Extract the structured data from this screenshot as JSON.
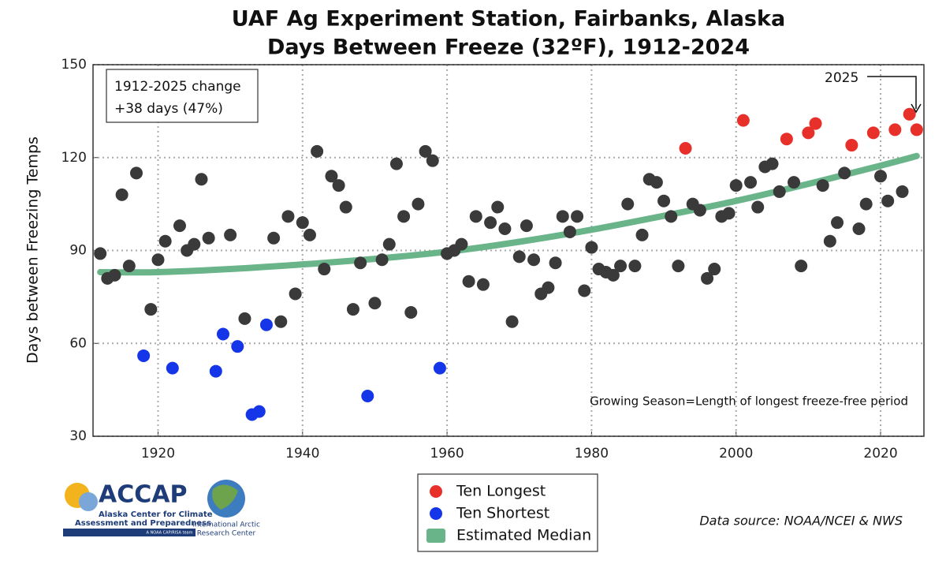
{
  "chart_data": {
    "type": "scatter",
    "title": [
      "UAF Ag Experiment Station, Fairbanks, Alaska",
      "Days Between Freeze (32ºF), 1912-2024"
    ],
    "y_label": "Days between Freezing Temps",
    "xlim": [
      1911,
      2026
    ],
    "xticks": [
      1920,
      1940,
      1960,
      1980,
      2000,
      2020
    ],
    "ylim": [
      30,
      150
    ],
    "yticks": [
      30,
      60,
      90,
      120,
      150
    ],
    "grid": true,
    "series": [
      {
        "type": "scatter",
        "color": "#3a3a3a",
        "x": [
          1912,
          1913,
          1914,
          1915,
          1916,
          1917,
          1919,
          1920,
          1921,
          1923,
          1924,
          1925,
          1926,
          1927,
          1930,
          1932,
          1936,
          1937,
          1938,
          1939,
          1940,
          1941,
          1942,
          1943,
          1944,
          1945,
          1946,
          1947,
          1948,
          1950,
          1951,
          1952,
          1953,
          1954,
          1955,
          1956,
          1957,
          1958,
          1960,
          1961,
          1962,
          1963,
          1964,
          1965,
          1966,
          1967,
          1968,
          1969,
          1970,
          1971,
          1972,
          1973,
          1974,
          1975,
          1976,
          1977,
          1978,
          1979,
          1980,
          1981,
          1982,
          1983,
          1984,
          1985,
          1986,
          1987,
          1988,
          1989,
          1990,
          1991,
          1992,
          1994,
          1995,
          1996,
          1997,
          1998,
          1999,
          2000,
          2002,
          2003,
          2004,
          2005,
          2006,
          2008,
          2009,
          2012,
          2013,
          2014,
          2015,
          2017,
          2018,
          2020,
          2021,
          2023
        ],
        "values": [
          89,
          81,
          82,
          108,
          85,
          115,
          71,
          87,
          93,
          98,
          90,
          92,
          113,
          94,
          95,
          68,
          94,
          67,
          101,
          76,
          99,
          95,
          122,
          84,
          114,
          111,
          104,
          71,
          86,
          73,
          87,
          92,
          118,
          101,
          70,
          105,
          122,
          119,
          89,
          90,
          92,
          80,
          101,
          79,
          99,
          104,
          97,
          67,
          88,
          98,
          87,
          76,
          78,
          86,
          101,
          96,
          101,
          77,
          91,
          84,
          83,
          82,
          85,
          105,
          85,
          95,
          113,
          112,
          106,
          101,
          85,
          105,
          103,
          81,
          84,
          101,
          102,
          111,
          112,
          104,
          117,
          118,
          109,
          112,
          85,
          111,
          93,
          99,
          115,
          97,
          105,
          114,
          106,
          109
        ]
      },
      {
        "type": "scatter",
        "name": "Ten Longest",
        "color": "#e8302a",
        "x": [
          1993,
          2001,
          2007,
          2010,
          2011,
          2016,
          2019,
          2022,
          2024,
          2025
        ],
        "values": [
          123,
          132,
          126,
          128,
          131,
          124,
          128,
          129,
          134,
          129
        ]
      },
      {
        "type": "scatter",
        "name": "Ten Shortest",
        "color": "#1436e8",
        "x": [
          1918,
          1922,
          1928,
          1929,
          1931,
          1933,
          1934,
          1935,
          1949,
          1959
        ],
        "values": [
          56,
          52,
          51,
          63,
          59,
          37,
          38,
          66,
          43,
          52
        ]
      },
      {
        "type": "line",
        "name": "Estimated Median",
        "color": "#6ab48a",
        "x": [
          1912,
          1920,
          1930,
          1940,
          1950,
          1960,
          1970,
          1980,
          1990,
          2000,
          2010,
          2020,
          2025
        ],
        "values": [
          83,
          83,
          84,
          85.5,
          87.3,
          89.6,
          92.8,
          96.7,
          101.2,
          106,
          111.5,
          117.4,
          120.5
        ]
      }
    ],
    "annotations": {
      "change_box": [
        "1912-2025 change",
        "+38 days (47%)"
      ],
      "year_pointer": "2025",
      "definition": "Growing Season=Length of longest freeze-free period",
      "source": "Data source: NOAA/NCEI & NWS"
    }
  },
  "logos": {
    "accap": [
      "ACCAP",
      "Alaska Center for Climate",
      "Assessment and Preparedness",
      "A NOAA CAP/RISA team"
    ],
    "iarc": [
      "International Arctic",
      "Research Center"
    ]
  }
}
